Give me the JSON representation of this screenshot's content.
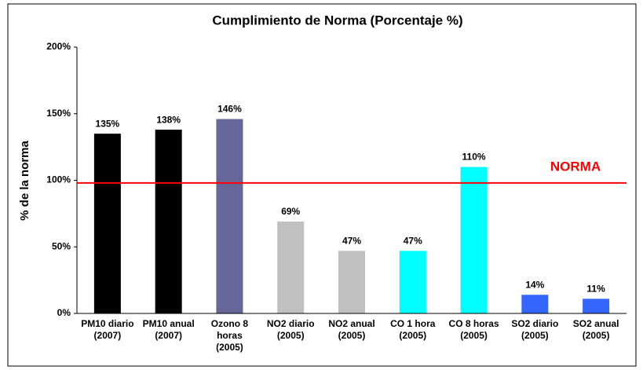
{
  "chart_data": {
    "type": "bar",
    "title": "Cumplimiento de Norma (Porcentaje %)",
    "y_label": "% de la norma",
    "categories": [
      [
        "PM10 diario",
        "(2007)"
      ],
      [
        "PM10 anual",
        "(2007)"
      ],
      [
        "Ozono 8",
        "horas",
        "(2005)"
      ],
      [
        "NO2 diario",
        "(2005)"
      ],
      [
        "NO2 anual",
        "(2005)"
      ],
      [
        "CO 1 hora",
        "(2005)"
      ],
      [
        "CO 8 horas",
        "(2005)"
      ],
      [
        "SO2 diario",
        "(2005)"
      ],
      [
        "SO2 anual",
        "(2005)"
      ]
    ],
    "values": [
      135,
      138,
      146,
      69,
      47,
      47,
      110,
      14,
      11
    ],
    "value_labels": [
      "135%",
      "138%",
      "146%",
      "69%",
      "47%",
      "47%",
      "110%",
      "14%",
      "11%"
    ],
    "colors": [
      "#000000",
      "#000000",
      "#666699",
      "#c0c0c0",
      "#c0c0c0",
      "#00ffff",
      "#00ffff",
      "#3366ff",
      "#3366ff"
    ],
    "ylim": [
      0,
      200
    ],
    "yticks": [
      {
        "value": 0,
        "label": "0%"
      },
      {
        "value": 50,
        "label": "50%"
      },
      {
        "value": 100,
        "label": "100%"
      },
      {
        "value": 150,
        "label": "150%"
      },
      {
        "value": 200,
        "label": "200%"
      }
    ],
    "reference_line": {
      "value": 98,
      "label": "NORMA",
      "color": "#ff0000"
    }
  }
}
